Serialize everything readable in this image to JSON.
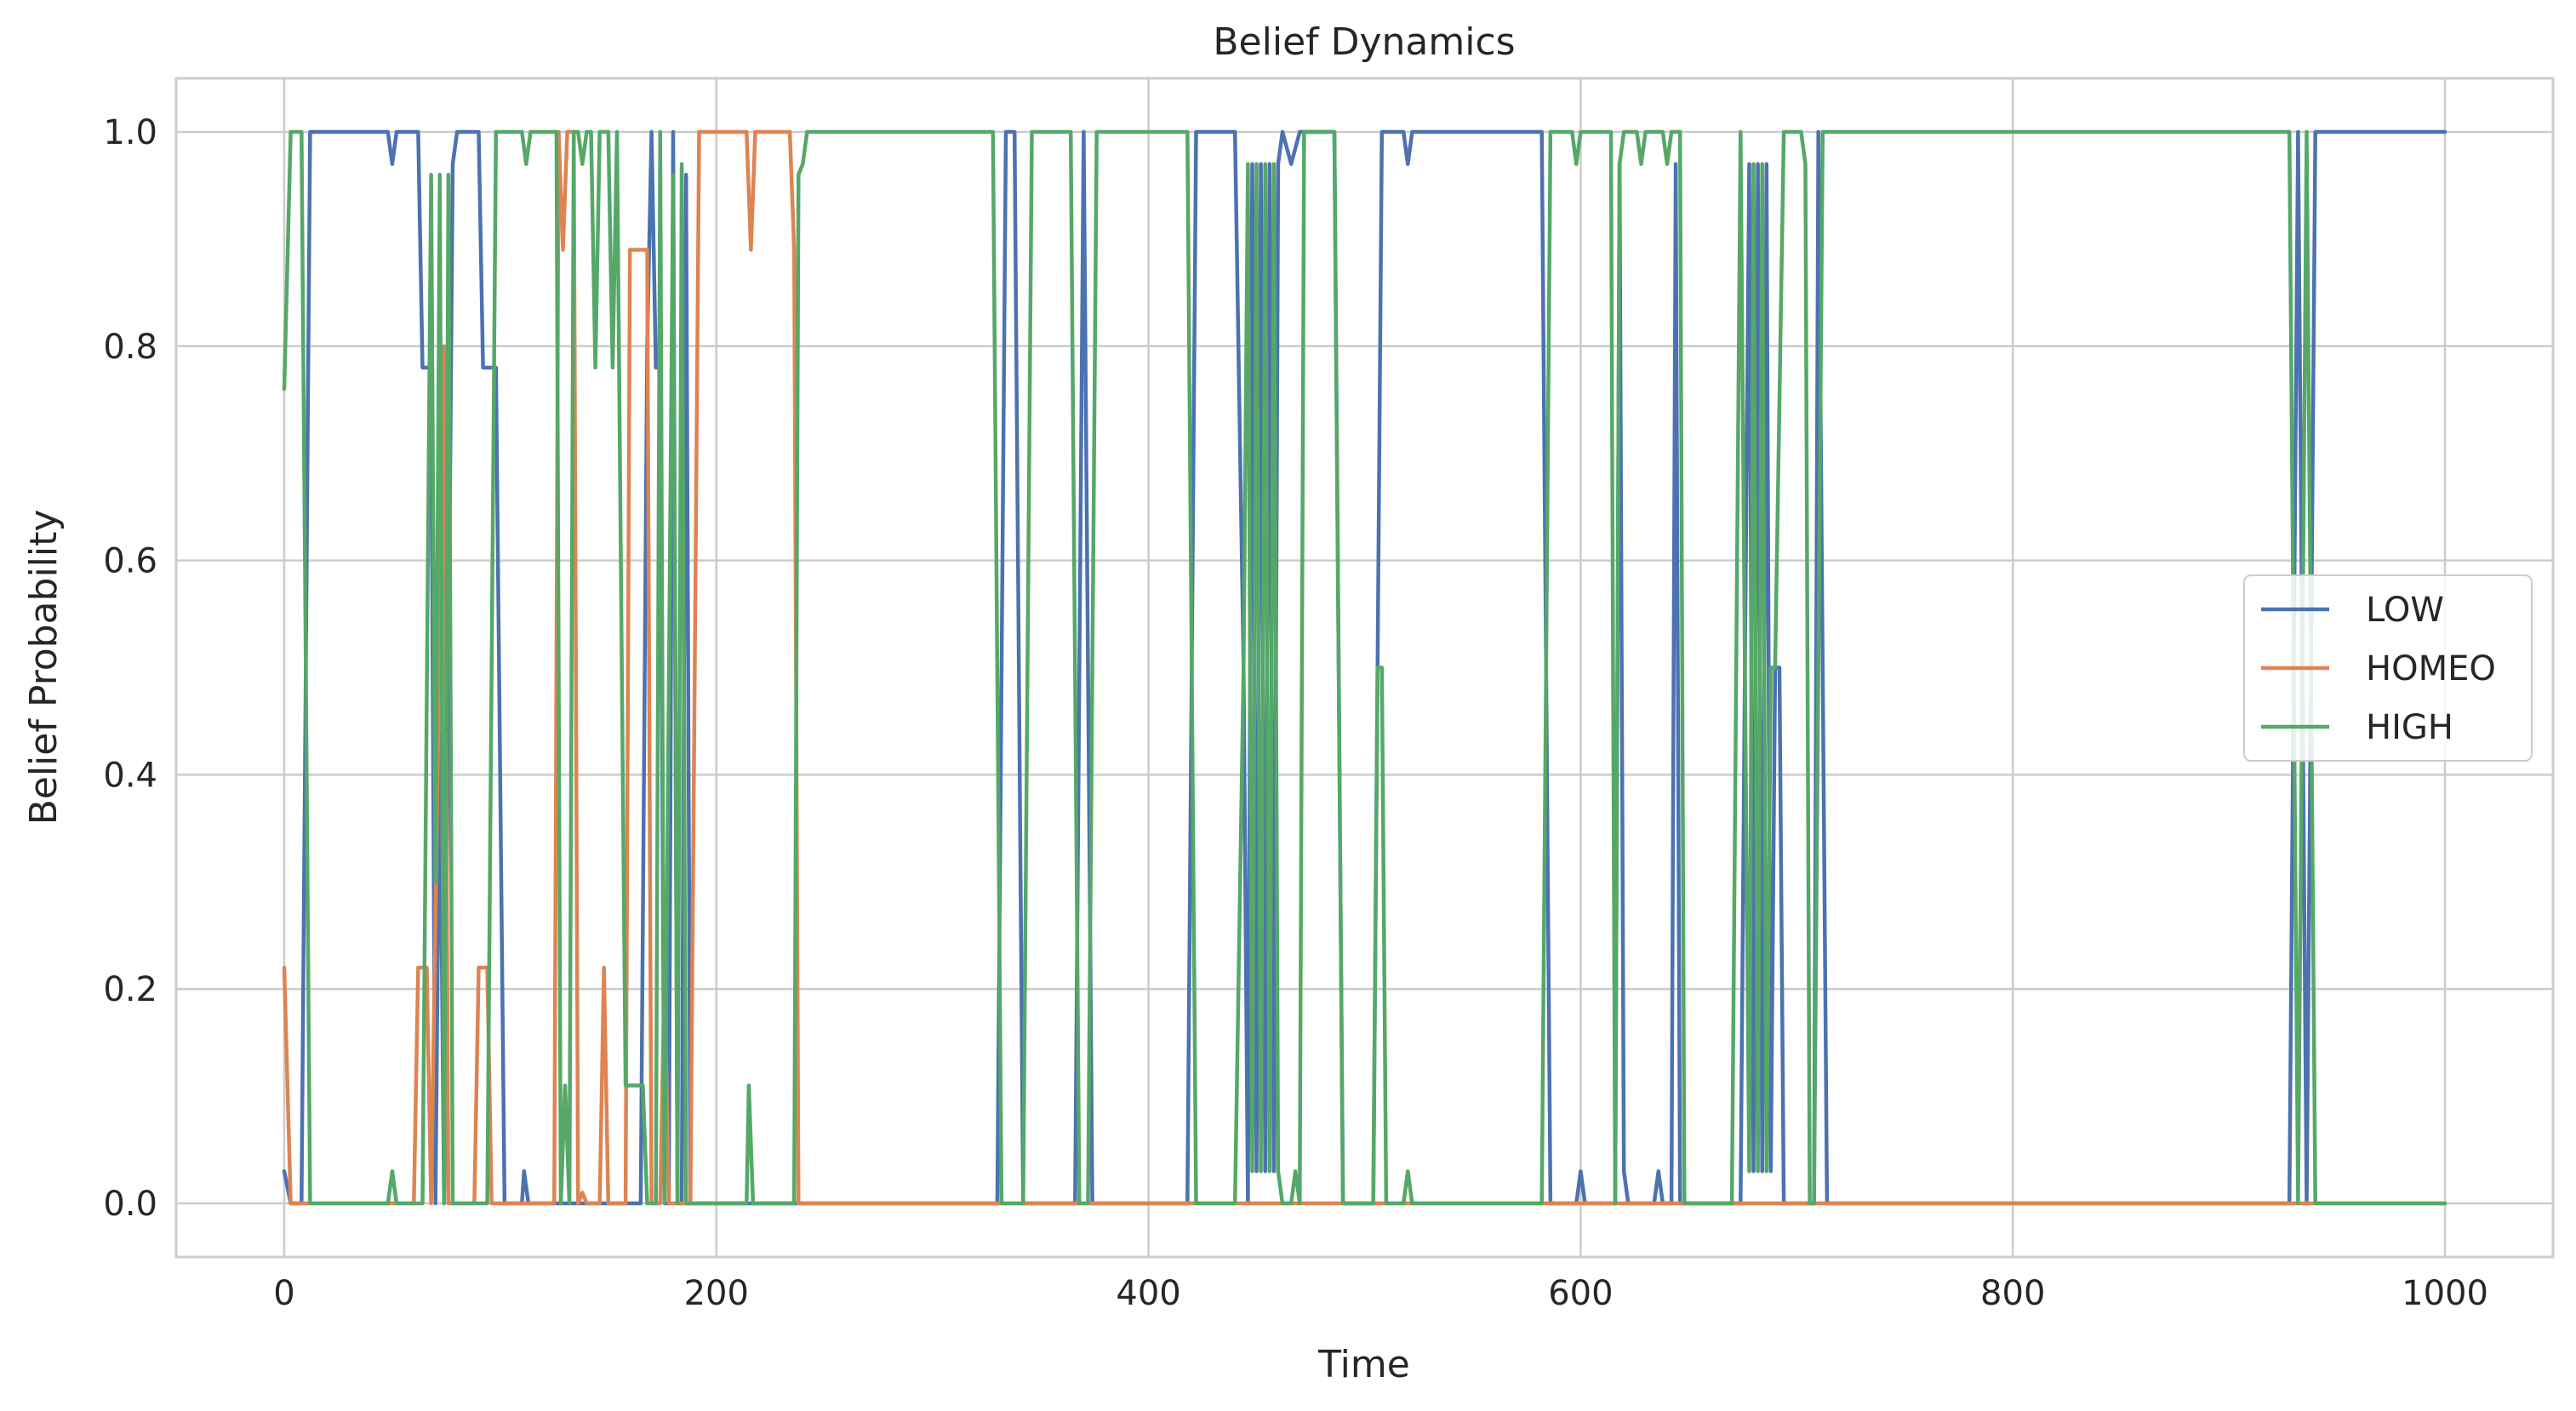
{
  "chart_data": {
    "type": "line",
    "title": "Belief Dynamics",
    "xlabel": "Time",
    "ylabel": "Belief Probability",
    "xlim": [
      -50,
      1050
    ],
    "ylim": [
      -0.05,
      1.05
    ],
    "xticks": [
      0,
      200,
      400,
      600,
      800,
      1000
    ],
    "xtick_labels": [
      "0",
      "200",
      "400",
      "600",
      "800",
      "1000"
    ],
    "yticks": [
      0.0,
      0.2,
      0.4,
      0.6,
      0.8,
      1.0
    ],
    "ytick_labels": [
      "0.0",
      "0.2",
      "0.4",
      "0.6",
      "0.8",
      "1.0"
    ],
    "grid": true,
    "legend_position": "center-right",
    "series": [
      {
        "name": "LOW",
        "color": "#4c72b0",
        "points": [
          [
            0,
            0.03
          ],
          [
            3,
            0.0
          ],
          [
            8,
            0.0
          ],
          [
            12,
            1.0
          ],
          [
            48,
            1.0
          ],
          [
            50,
            0.97
          ],
          [
            52,
            1.0
          ],
          [
            62,
            1.0
          ],
          [
            64,
            0.78
          ],
          [
            68,
            0.78
          ],
          [
            70,
            0.0
          ],
          [
            72,
            0.44
          ],
          [
            74,
            0.0
          ],
          [
            78,
            0.97
          ],
          [
            80,
            1.0
          ],
          [
            90,
            1.0
          ],
          [
            92,
            0.78
          ],
          [
            98,
            0.78
          ],
          [
            102,
            0.0
          ],
          [
            110,
            0.0
          ],
          [
            111,
            0.03
          ],
          [
            113,
            0.0
          ],
          [
            165,
            0.0
          ],
          [
            168,
            0.8
          ],
          [
            170,
            1.0
          ],
          [
            172,
            0.78
          ],
          [
            174,
            0.78
          ],
          [
            176,
            0.0
          ],
          [
            178,
            0.0
          ],
          [
            180,
            1.0
          ],
          [
            182,
            0.0
          ],
          [
            184,
            0.0
          ],
          [
            186,
            0.96
          ],
          [
            188,
            0.0
          ],
          [
            330,
            0.0
          ],
          [
            334,
            1.0
          ],
          [
            338,
            1.0
          ],
          [
            342,
            0.0
          ],
          [
            366,
            0.0
          ],
          [
            370,
            1.0
          ],
          [
            374,
            0.0
          ],
          [
            418,
            0.0
          ],
          [
            422,
            1.0
          ],
          [
            440,
            1.0
          ],
          [
            444,
            0.5
          ],
          [
            446,
            0.0
          ],
          [
            448,
            0.97
          ],
          [
            450,
            0.03
          ],
          [
            452,
            0.97
          ],
          [
            454,
            0.03
          ],
          [
            456,
            0.97
          ],
          [
            458,
            0.03
          ],
          [
            460,
            0.97
          ],
          [
            462,
            1.0
          ],
          [
            466,
            0.97
          ],
          [
            470,
            1.0
          ],
          [
            486,
            1.0
          ],
          [
            490,
            0.0
          ],
          [
            504,
            0.0
          ],
          [
            508,
            1.0
          ],
          [
            518,
            1.0
          ],
          [
            520,
            0.97
          ],
          [
            522,
            1.0
          ],
          [
            582,
            1.0
          ],
          [
            586,
            0.0
          ],
          [
            598,
            0.0
          ],
          [
            600,
            0.03
          ],
          [
            602,
            0.0
          ],
          [
            616,
            0.0
          ],
          [
            618,
            0.97
          ],
          [
            620,
            0.03
          ],
          [
            622,
            0.0
          ],
          [
            634,
            0.0
          ],
          [
            636,
            0.03
          ],
          [
            638,
            0.0
          ],
          [
            642,
            0.0
          ],
          [
            644,
            0.97
          ],
          [
            646,
            0.0
          ],
          [
            674,
            0.0
          ],
          [
            676,
            0.5
          ],
          [
            678,
            0.97
          ],
          [
            680,
            0.03
          ],
          [
            682,
            0.97
          ],
          [
            684,
            0.03
          ],
          [
            686,
            0.97
          ],
          [
            688,
            0.03
          ],
          [
            690,
            0.5
          ],
          [
            692,
            0.5
          ],
          [
            694,
            0.0
          ],
          [
            708,
            0.0
          ],
          [
            710,
            1.0
          ],
          [
            714,
            0.0
          ],
          [
            928,
            0.0
          ],
          [
            932,
            1.0
          ],
          [
            936,
            0.0
          ],
          [
            940,
            1.0
          ],
          [
            1000,
            1.0
          ]
        ]
      },
      {
        "name": "HOMEO",
        "color": "#dd8452",
        "points": [
          [
            0,
            0.22
          ],
          [
            3,
            0.0
          ],
          [
            60,
            0.0
          ],
          [
            62,
            0.22
          ],
          [
            66,
            0.22
          ],
          [
            68,
            0.0
          ],
          [
            74,
            0.8
          ],
          [
            76,
            0.0
          ],
          [
            88,
            0.0
          ],
          [
            90,
            0.22
          ],
          [
            94,
            0.22
          ],
          [
            96,
            0.0
          ],
          [
            125,
            0.0
          ],
          [
            127,
            1.0
          ],
          [
            129,
            0.89
          ],
          [
            131,
            1.0
          ],
          [
            134,
            1.0
          ],
          [
            136,
            0.0
          ],
          [
            138,
            0.01
          ],
          [
            140,
            0.0
          ],
          [
            146,
            0.0
          ],
          [
            148,
            0.22
          ],
          [
            150,
            0.0
          ],
          [
            158,
            0.0
          ],
          [
            160,
            0.89
          ],
          [
            168,
            0.89
          ],
          [
            170,
            0.0
          ],
          [
            174,
            0.0
          ],
          [
            176,
            0.22
          ],
          [
            178,
            0.0
          ],
          [
            188,
            0.0
          ],
          [
            192,
            1.0
          ],
          [
            214,
            1.0
          ],
          [
            216,
            0.89
          ],
          [
            218,
            1.0
          ],
          [
            234,
            1.0
          ],
          [
            236,
            0.89
          ],
          [
            238,
            0.0
          ],
          [
            1000,
            0.0
          ]
        ]
      },
      {
        "name": "HIGH",
        "color": "#55a868",
        "points": [
          [
            0,
            0.76
          ],
          [
            3,
            1.0
          ],
          [
            8,
            1.0
          ],
          [
            12,
            0.0
          ],
          [
            48,
            0.0
          ],
          [
            50,
            0.03
          ],
          [
            52,
            0.0
          ],
          [
            64,
            0.0
          ],
          [
            68,
            0.96
          ],
          [
            70,
            0.3
          ],
          [
            72,
            0.96
          ],
          [
            74,
            0.0
          ],
          [
            76,
            0.96
          ],
          [
            78,
            0.0
          ],
          [
            94,
            0.0
          ],
          [
            98,
            1.0
          ],
          [
            110,
            1.0
          ],
          [
            112,
            0.97
          ],
          [
            114,
            1.0
          ],
          [
            126,
            1.0
          ],
          [
            128,
            0.0
          ],
          [
            130,
            0.11
          ],
          [
            132,
            0.0
          ],
          [
            134,
            1.0
          ],
          [
            136,
            1.0
          ],
          [
            138,
            0.97
          ],
          [
            140,
            1.0
          ],
          [
            142,
            1.0
          ],
          [
            144,
            0.78
          ],
          [
            146,
            1.0
          ],
          [
            150,
            1.0
          ],
          [
            152,
            0.78
          ],
          [
            154,
            1.0
          ],
          [
            158,
            0.11
          ],
          [
            166,
            0.11
          ],
          [
            168,
            0.0
          ],
          [
            172,
            0.0
          ],
          [
            174,
            1.0
          ],
          [
            176,
            0.0
          ],
          [
            180,
            0.96
          ],
          [
            182,
            0.0
          ],
          [
            184,
            0.97
          ],
          [
            186,
            0.0
          ],
          [
            214,
            0.0
          ],
          [
            215,
            0.11
          ],
          [
            217,
            0.0
          ],
          [
            236,
            0.0
          ],
          [
            238,
            0.96
          ],
          [
            240,
            0.97
          ],
          [
            242,
            1.0
          ],
          [
            328,
            1.0
          ],
          [
            332,
            0.0
          ],
          [
            342,
            0.0
          ],
          [
            346,
            1.0
          ],
          [
            364,
            1.0
          ],
          [
            368,
            0.0
          ],
          [
            372,
            0.0
          ],
          [
            376,
            1.0
          ],
          [
            418,
            1.0
          ],
          [
            422,
            0.0
          ],
          [
            440,
            0.0
          ],
          [
            444,
            0.5
          ],
          [
            446,
            0.97
          ],
          [
            448,
            0.03
          ],
          [
            450,
            0.97
          ],
          [
            452,
            0.03
          ],
          [
            454,
            0.97
          ],
          [
            456,
            0.03
          ],
          [
            458,
            0.97
          ],
          [
            460,
            0.03
          ],
          [
            462,
            0.0
          ],
          [
            466,
            0.0
          ],
          [
            468,
            0.03
          ],
          [
            470,
            0.0
          ],
          [
            472,
            1.0
          ],
          [
            486,
            1.0
          ],
          [
            490,
            0.0
          ],
          [
            504,
            0.0
          ],
          [
            506,
            0.5
          ],
          [
            508,
            0.5
          ],
          [
            510,
            0.0
          ],
          [
            518,
            0.0
          ],
          [
            520,
            0.03
          ],
          [
            522,
            0.0
          ],
          [
            582,
            0.0
          ],
          [
            586,
            1.0
          ],
          [
            596,
            1.0
          ],
          [
            598,
            0.97
          ],
          [
            600,
            1.0
          ],
          [
            614,
            1.0
          ],
          [
            616,
            0.0
          ],
          [
            618,
            0.97
          ],
          [
            620,
            1.0
          ],
          [
            626,
            1.0
          ],
          [
            628,
            0.97
          ],
          [
            630,
            1.0
          ],
          [
            638,
            1.0
          ],
          [
            640,
            0.97
          ],
          [
            642,
            1.0
          ],
          [
            646,
            1.0
          ],
          [
            648,
            0.0
          ],
          [
            670,
            0.0
          ],
          [
            674,
            1.0
          ],
          [
            676,
            0.5
          ],
          [
            678,
            0.03
          ],
          [
            680,
            0.97
          ],
          [
            682,
            0.03
          ],
          [
            684,
            0.97
          ],
          [
            686,
            0.03
          ],
          [
            688,
            0.5
          ],
          [
            690,
            0.5
          ],
          [
            694,
            1.0
          ],
          [
            702,
            1.0
          ],
          [
            704,
            0.97
          ],
          [
            706,
            0.0
          ],
          [
            708,
            0.0
          ],
          [
            712,
            1.0
          ],
          [
            928,
            1.0
          ],
          [
            932,
            0.0
          ],
          [
            936,
            1.0
          ],
          [
            940,
            0.0
          ],
          [
            1000,
            0.0
          ]
        ]
      }
    ]
  }
}
